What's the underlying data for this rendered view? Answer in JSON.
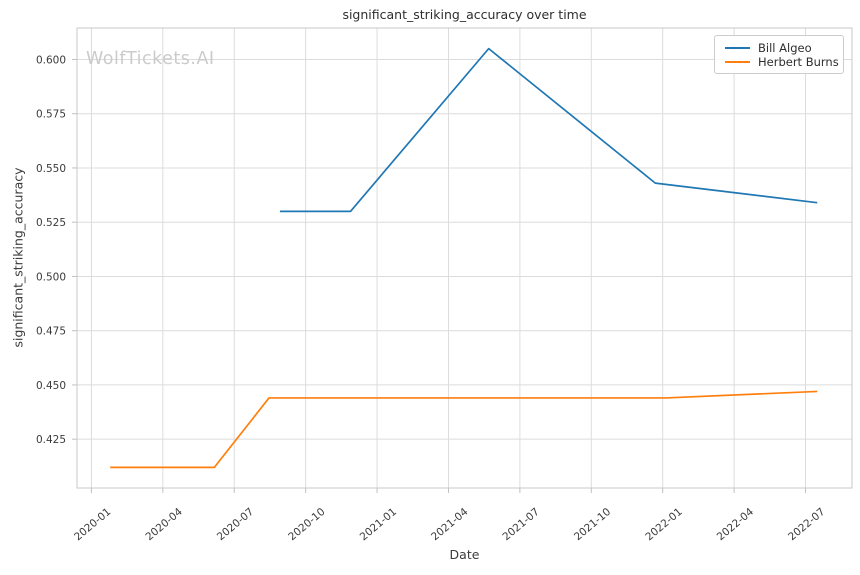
{
  "watermark": "WolfTickets.AI",
  "chart_data": {
    "type": "line",
    "title": "significant_striking_accuracy over time",
    "xlabel": "Date",
    "ylabel": "significant_striking_accuracy",
    "grid": true,
    "legend_position": "upper right",
    "x_tick_labels": [
      "2020-01",
      "2020-04",
      "2020-07",
      "2020-10",
      "2021-01",
      "2021-04",
      "2021-07",
      "2021-10",
      "2022-01",
      "2022-04",
      "2022-07"
    ],
    "y_tick_labels": [
      "0.425",
      "0.450",
      "0.475",
      "0.500",
      "0.525",
      "0.550",
      "0.575",
      "0.600"
    ],
    "xlim_dates": [
      "2019-12-13",
      "2022-08-30"
    ],
    "ylim": [
      0.4025,
      0.6145
    ],
    "series": [
      {
        "name": "Bill Algeo",
        "color": "#1f77b4",
        "points": [
          {
            "date": "2020-08-29",
            "value": 0.53
          },
          {
            "date": "2020-11-28",
            "value": 0.53
          },
          {
            "date": "2021-05-22",
            "value": 0.605
          },
          {
            "date": "2021-12-22",
            "value": 0.543
          },
          {
            "date": "2022-07-16",
            "value": 0.534
          }
        ]
      },
      {
        "name": "Herbert Burns",
        "color": "#ff7f0e",
        "points": [
          {
            "date": "2020-01-25",
            "value": 0.412
          },
          {
            "date": "2020-06-06",
            "value": 0.412
          },
          {
            "date": "2020-08-15",
            "value": 0.444
          },
          {
            "date": "2022-01-05",
            "value": 0.444
          },
          {
            "date": "2022-07-16",
            "value": 0.447
          }
        ]
      }
    ],
    "style": {
      "grid_color": "#dcdcdc",
      "spine_color": "#c8c8c8",
      "tick_color": "#c0c0c0",
      "tick_label_color": "#3b3b3b",
      "background": "#ffffff"
    }
  }
}
